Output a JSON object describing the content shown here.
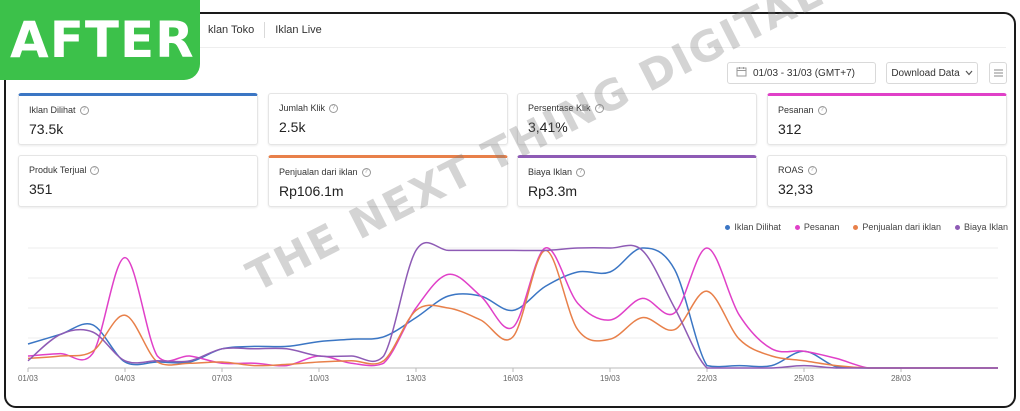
{
  "badge": {
    "text": "AFTER"
  },
  "tabs": [
    {
      "label": "klan Toko"
    },
    {
      "label": "Iklan Live"
    }
  ],
  "date_range": {
    "value": "01/03 - 31/03 (GMT+7)",
    "icon": "calendar-icon"
  },
  "download": {
    "label": "Download Data"
  },
  "menu_icon": "hamburger-icon",
  "metrics": [
    {
      "label": "Iklan Dilihat",
      "value": "73.5k",
      "accent": "#3b76c4"
    },
    {
      "label": "Jumlah Klik",
      "value": "2.5k",
      "accent": ""
    },
    {
      "label": "Persentase Klik",
      "value": "3,41%",
      "accent": ""
    },
    {
      "label": "Pesanan",
      "value": "312",
      "accent": "#e040c8"
    },
    {
      "label": "Produk Terjual",
      "value": "351",
      "accent": ""
    },
    {
      "label": "Penjualan dari iklan",
      "value": "Rp106.1m",
      "accent": "#e8804a"
    },
    {
      "label": "Biaya Iklan",
      "value": "Rp3.3m",
      "accent": "#8e5bb5"
    },
    {
      "label": "ROAS",
      "value": "32,33",
      "accent": ""
    }
  ],
  "watermark": {
    "text": "THE NEXT THING DIGITAL"
  },
  "chart_data": {
    "type": "line",
    "title": "",
    "xlabel": "",
    "ylabel": "",
    "grid": true,
    "legend_position": "top-right",
    "categories": [
      "01/03",
      "02/03",
      "03/03",
      "04/03",
      "05/03",
      "06/03",
      "07/03",
      "08/03",
      "09/03",
      "10/03",
      "11/03",
      "12/03",
      "13/03",
      "14/03",
      "15/03",
      "16/03",
      "17/03",
      "18/03",
      "19/03",
      "20/03",
      "21/03",
      "22/03",
      "23/03",
      "24/03",
      "25/03",
      "26/03",
      "27/03",
      "28/03",
      "29/03",
      "30/03",
      "31/03"
    ],
    "tick_labels": [
      "01/03",
      "04/03",
      "07/03",
      "10/03",
      "13/03",
      "16/03",
      "19/03",
      "22/03",
      "25/03",
      "28/03"
    ],
    "ylim": [
      0,
      1
    ],
    "series": [
      {
        "name": "Iklan Dilihat",
        "color": "#3b76c4",
        "values": [
          0.2,
          0.28,
          0.36,
          0.05,
          0.05,
          0.05,
          0.16,
          0.18,
          0.18,
          0.22,
          0.24,
          0.26,
          0.42,
          0.6,
          0.6,
          0.48,
          0.68,
          0.8,
          0.8,
          1.0,
          0.82,
          0.02,
          0.02,
          0.02,
          0.14,
          0.01,
          0.0,
          0.0,
          0.0,
          0.0,
          0.0
        ]
      },
      {
        "name": "Pesanan",
        "color": "#e040c8",
        "values": [
          0.1,
          0.12,
          0.12,
          0.92,
          0.1,
          0.1,
          0.04,
          0.04,
          0.02,
          0.1,
          0.04,
          0.04,
          0.5,
          0.78,
          0.6,
          0.34,
          1.0,
          0.54,
          0.4,
          0.58,
          0.46,
          1.0,
          0.44,
          0.16,
          0.14,
          0.08,
          0.0,
          0.0,
          0.0,
          0.0,
          0.0
        ]
      },
      {
        "name": "Penjualan dari iklan",
        "color": "#e8804a",
        "values": [
          0.08,
          0.1,
          0.14,
          0.44,
          0.05,
          0.04,
          0.05,
          0.02,
          0.03,
          0.05,
          0.06,
          0.06,
          0.48,
          0.5,
          0.4,
          0.26,
          0.98,
          0.32,
          0.24,
          0.42,
          0.32,
          0.64,
          0.24,
          0.1,
          0.06,
          0.02,
          0.0,
          0.0,
          0.0,
          0.0,
          0.0
        ]
      },
      {
        "name": "Biaya Iklan",
        "color": "#8e5bb5",
        "values": [
          0.06,
          0.28,
          0.3,
          0.06,
          0.06,
          0.06,
          0.16,
          0.16,
          0.16,
          0.1,
          0.1,
          0.1,
          0.98,
          0.98,
          0.98,
          0.98,
          0.98,
          1.0,
          1.0,
          0.98,
          0.5,
          0.0,
          0.0,
          0.0,
          0.02,
          0.0,
          0.0,
          0.0,
          0.0,
          0.0,
          0.0
        ]
      }
    ]
  }
}
